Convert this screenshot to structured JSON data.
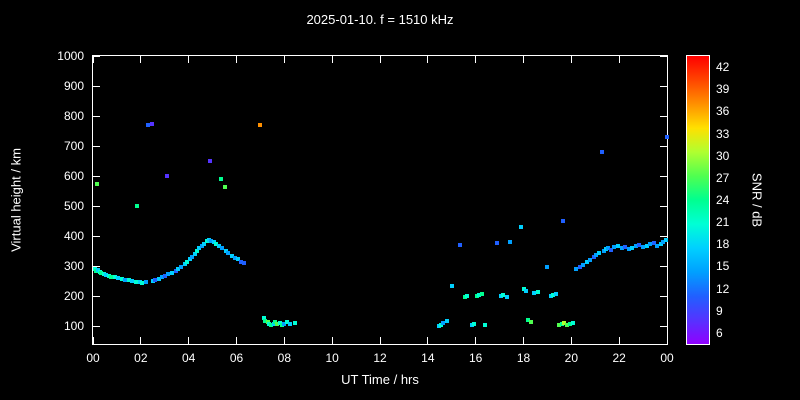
{
  "page": {
    "background": "#000000",
    "foreground": "#ffffff"
  },
  "chart_data": {
    "type": "scatter",
    "title": "2025-01-10. f = 1510 kHz",
    "xlabel": "UT Time / hrs",
    "ylabel": "Virtual height / km",
    "colorbar_label": "SNR / dB",
    "x_range": [
      0,
      24
    ],
    "y_range": [
      40,
      1000
    ],
    "snr_range": [
      4.5,
      43.5
    ],
    "grid": false,
    "x_ticks": [
      {
        "value": 0,
        "label": "00"
      },
      {
        "value": 2,
        "label": "02"
      },
      {
        "value": 4,
        "label": "04"
      },
      {
        "value": 6,
        "label": "06"
      },
      {
        "value": 8,
        "label": "08"
      },
      {
        "value": 10,
        "label": "10"
      },
      {
        "value": 12,
        "label": "12"
      },
      {
        "value": 14,
        "label": "14"
      },
      {
        "value": 16,
        "label": "16"
      },
      {
        "value": 18,
        "label": "18"
      },
      {
        "value": 20,
        "label": "20"
      },
      {
        "value": 22,
        "label": "22"
      },
      {
        "value": 24,
        "label": "00"
      }
    ],
    "y_ticks": [
      100,
      200,
      300,
      400,
      500,
      600,
      700,
      800,
      900,
      1000
    ],
    "colorbar_ticks": [
      6,
      9,
      12,
      15,
      18,
      21,
      24,
      27,
      30,
      33,
      36,
      39,
      42
    ],
    "palette_values": [
      6,
      9,
      12,
      15,
      18,
      21,
      24,
      27,
      30,
      33,
      36,
      39,
      42
    ],
    "palette_colors": [
      "#9000ff",
      "#5533ff",
      "#2060ff",
      "#00a0ff",
      "#00d0ff",
      "#00ffd5",
      "#00ff90",
      "#50ff50",
      "#b0ff30",
      "#ffe000",
      "#ff9000",
      "#ff4500",
      "#ff0000"
    ],
    "points": [
      [
        0.08,
        290,
        21
      ],
      [
        0.13,
        283,
        24
      ],
      [
        0.2,
        287,
        18
      ],
      [
        0.17,
        575,
        27
      ],
      [
        0.28,
        280,
        21
      ],
      [
        0.35,
        276,
        24
      ],
      [
        0.45,
        272,
        21
      ],
      [
        0.55,
        270,
        18
      ],
      [
        0.65,
        268,
        21
      ],
      [
        0.75,
        265,
        24
      ],
      [
        0.9,
        262,
        21
      ],
      [
        1.05,
        260,
        18
      ],
      [
        1.2,
        256,
        21
      ],
      [
        1.35,
        254,
        15
      ],
      [
        1.5,
        252,
        21
      ],
      [
        1.65,
        250,
        18
      ],
      [
        1.8,
        248,
        21
      ],
      [
        1.85,
        500,
        24
      ],
      [
        1.95,
        246,
        18
      ],
      [
        2.05,
        244,
        21
      ],
      [
        2.2,
        246,
        15
      ],
      [
        2.3,
        770,
        12
      ],
      [
        2.45,
        772,
        9
      ],
      [
        2.5,
        250,
        18
      ],
      [
        2.6,
        255,
        12
      ],
      [
        2.75,
        258,
        18
      ],
      [
        2.9,
        262,
        15
      ],
      [
        3.0,
        268,
        12
      ],
      [
        3.1,
        600,
        9
      ],
      [
        3.15,
        272,
        15
      ],
      [
        3.3,
        278,
        18
      ],
      [
        3.45,
        284,
        12
      ],
      [
        3.55,
        290,
        18
      ],
      [
        3.7,
        298,
        15
      ],
      [
        3.85,
        308,
        18
      ],
      [
        3.95,
        315,
        21
      ],
      [
        4.05,
        322,
        18
      ],
      [
        4.15,
        330,
        15
      ],
      [
        4.25,
        340,
        18
      ],
      [
        4.35,
        350,
        21
      ],
      [
        4.45,
        360,
        18
      ],
      [
        4.55,
        368,
        15
      ],
      [
        4.65,
        375,
        18
      ],
      [
        4.75,
        382,
        21
      ],
      [
        4.85,
        388,
        18
      ],
      [
        4.9,
        650,
        9
      ],
      [
        4.95,
        384,
        15
      ],
      [
        5.05,
        380,
        18
      ],
      [
        5.15,
        374,
        21
      ],
      [
        5.25,
        368,
        18
      ],
      [
        5.35,
        590,
        24
      ],
      [
        5.4,
        360,
        15
      ],
      [
        5.5,
        562,
        27
      ],
      [
        5.55,
        350,
        18
      ],
      [
        5.65,
        342,
        15
      ],
      [
        5.8,
        335,
        18
      ],
      [
        5.95,
        328,
        15
      ],
      [
        6.05,
        322,
        18
      ],
      [
        6.2,
        315,
        12
      ],
      [
        6.3,
        310,
        12
      ],
      [
        7.0,
        770,
        36
      ],
      [
        7.15,
        128,
        21
      ],
      [
        7.2,
        118,
        24
      ],
      [
        7.3,
        112,
        27
      ],
      [
        7.35,
        108,
        21
      ],
      [
        7.45,
        105,
        24
      ],
      [
        7.55,
        108,
        18
      ],
      [
        7.6,
        112,
        24
      ],
      [
        7.7,
        106,
        27
      ],
      [
        7.8,
        110,
        21
      ],
      [
        7.9,
        104,
        24
      ],
      [
        8.0,
        108,
        15
      ],
      [
        8.1,
        112,
        21
      ],
      [
        8.25,
        106,
        18
      ],
      [
        8.45,
        110,
        21
      ],
      [
        14.45,
        100,
        18
      ],
      [
        14.55,
        104,
        21
      ],
      [
        14.65,
        110,
        15
      ],
      [
        14.8,
        118,
        18
      ],
      [
        15.0,
        232,
        18
      ],
      [
        15.35,
        370,
        12
      ],
      [
        15.55,
        196,
        24
      ],
      [
        15.65,
        200,
        21
      ],
      [
        15.85,
        102,
        18
      ],
      [
        15.95,
        106,
        21
      ],
      [
        16.05,
        200,
        24
      ],
      [
        16.15,
        204,
        21
      ],
      [
        16.25,
        208,
        24
      ],
      [
        16.4,
        102,
        21
      ],
      [
        16.9,
        376,
        12
      ],
      [
        17.05,
        200,
        18
      ],
      [
        17.15,
        204,
        21
      ],
      [
        17.3,
        198,
        18
      ],
      [
        17.45,
        380,
        15
      ],
      [
        17.9,
        430,
        18
      ],
      [
        18.0,
        222,
        21
      ],
      [
        18.1,
        216,
        18
      ],
      [
        18.2,
        120,
        24
      ],
      [
        18.3,
        114,
        27
      ],
      [
        18.45,
        210,
        18
      ],
      [
        18.6,
        214,
        21
      ],
      [
        19.0,
        296,
        15
      ],
      [
        19.15,
        200,
        18
      ],
      [
        19.25,
        204,
        21
      ],
      [
        19.35,
        208,
        18
      ],
      [
        19.5,
        102,
        27
      ],
      [
        19.6,
        106,
        24
      ],
      [
        19.65,
        450,
        12
      ],
      [
        19.7,
        110,
        30
      ],
      [
        19.8,
        102,
        27
      ],
      [
        19.95,
        106,
        24
      ],
      [
        20.05,
        110,
        21
      ],
      [
        20.2,
        290,
        15
      ],
      [
        20.35,
        298,
        12
      ],
      [
        20.5,
        305,
        15
      ],
      [
        20.65,
        312,
        18
      ],
      [
        20.8,
        320,
        15
      ],
      [
        20.95,
        330,
        12
      ],
      [
        21.05,
        338,
        15
      ],
      [
        21.15,
        344,
        18
      ],
      [
        21.3,
        680,
        12
      ],
      [
        21.35,
        350,
        15
      ],
      [
        21.45,
        356,
        18
      ],
      [
        21.55,
        360,
        15
      ],
      [
        21.65,
        352,
        12
      ],
      [
        21.8,
        362,
        15
      ],
      [
        21.95,
        368,
        18
      ],
      [
        22.1,
        360,
        15
      ],
      [
        22.25,
        364,
        12
      ],
      [
        22.4,
        356,
        15
      ],
      [
        22.55,
        360,
        18
      ],
      [
        22.7,
        366,
        15
      ],
      [
        22.85,
        370,
        12
      ],
      [
        23.0,
        364,
        15
      ],
      [
        23.15,
        368,
        18
      ],
      [
        23.3,
        374,
        15
      ],
      [
        23.45,
        378,
        12
      ],
      [
        23.6,
        368,
        15
      ],
      [
        23.75,
        372,
        18
      ],
      [
        23.85,
        380,
        15
      ],
      [
        23.95,
        386,
        18
      ],
      [
        23.98,
        730,
        12
      ]
    ]
  }
}
